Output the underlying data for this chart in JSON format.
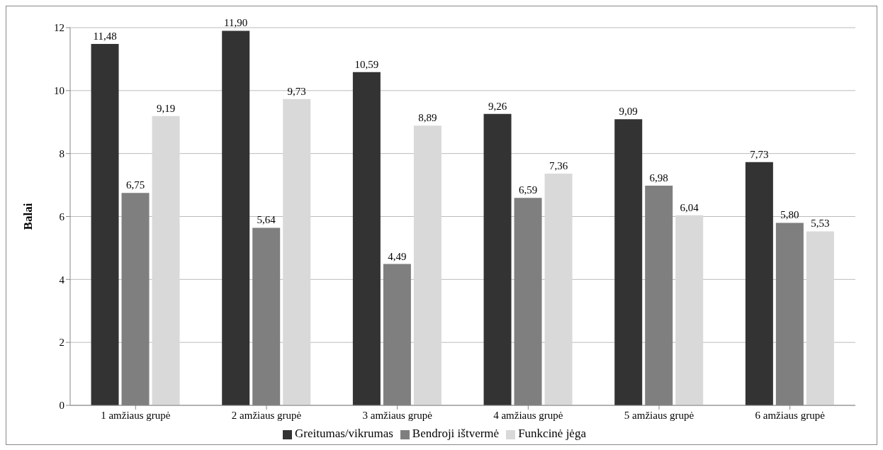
{
  "chart_data": {
    "type": "bar",
    "ylabel": "Balai",
    "categories": [
      "1 amžiaus grupė",
      "2 amžiaus grupė",
      "3 amžiaus grupė",
      "4 amžiaus grupė",
      "5 amžiaus grupė",
      "6 amžiaus grupė"
    ],
    "series": [
      {
        "name": "Greitumas/vikrumas",
        "color": "#333333",
        "values": [
          11.48,
          11.9,
          10.59,
          9.26,
          9.09,
          7.73
        ],
        "value_labels": [
          "11,48",
          "11,90",
          "10,59",
          "9,26",
          "9,09",
          "7,73"
        ]
      },
      {
        "name": "Bendroji ištvermė",
        "color": "#7f7f7f",
        "values": [
          6.75,
          5.64,
          4.49,
          6.59,
          6.98,
          5.8
        ],
        "value_labels": [
          "6,75",
          "5,64",
          "4,49",
          "6,59",
          "6,98",
          "5,80"
        ]
      },
      {
        "name": "Funkcinė jėga",
        "color": "#d9d9d9",
        "values": [
          9.19,
          9.73,
          8.89,
          7.36,
          6.04,
          5.53
        ],
        "value_labels": [
          "9,19",
          "9,73",
          "8,89",
          "7,36",
          "6,04",
          "5,53"
        ]
      }
    ],
    "ylim": [
      0,
      12
    ],
    "yticks": [
      0,
      2,
      4,
      6,
      8,
      10,
      12
    ],
    "grid": "y",
    "legend": "bottom"
  }
}
